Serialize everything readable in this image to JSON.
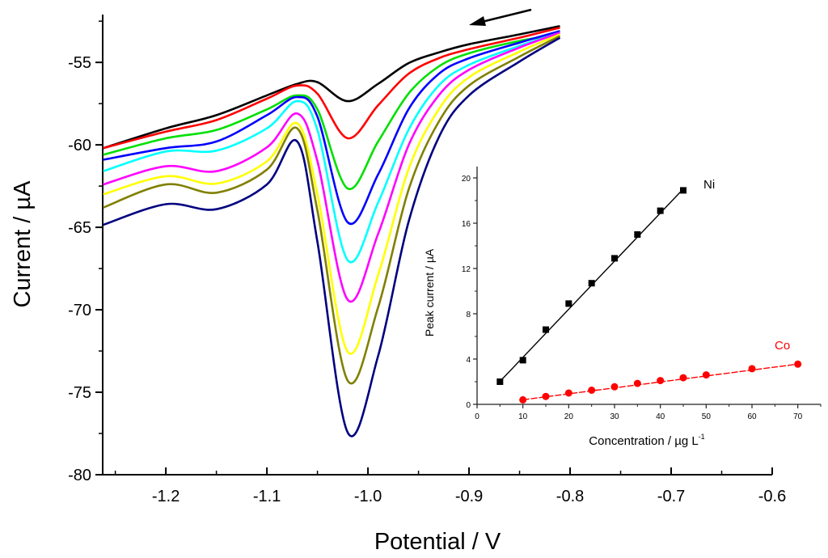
{
  "chart_data": [
    {
      "type": "line",
      "title": "",
      "xlabel": "Potential / V",
      "ylabel": "Current / µA",
      "xlim": [
        -1.2625,
        -0.6
      ],
      "ylim": [
        -80,
        -52.1
      ],
      "xticks": [
        -1.2,
        -1.1,
        -1.0,
        -0.9,
        -0.8,
        -0.7,
        -0.6
      ],
      "xtick_labels": [
        "-1.2",
        "-1.1",
        "-1.0",
        "-0.9",
        "-0.8",
        "-0.7",
        "-0.6"
      ],
      "yticks": [
        -55,
        -60,
        -65,
        -70,
        -75,
        -80
      ],
      "ytick_labels": [
        "-55",
        "-60",
        "-65",
        "-70",
        "-75",
        "-80"
      ],
      "grid": false,
      "annotation": "arrow indicating scan direction (right to left)",
      "x": [
        -1.262,
        -1.2,
        -1.15,
        -1.1,
        -1.07,
        -1.05,
        -1.02,
        -0.99,
        -0.96,
        -0.93,
        -0.9,
        -0.85,
        -0.81
      ],
      "series": [
        {
          "name": "black",
          "color": "#000000",
          "values": [
            -60.2,
            -59.0,
            -58.2,
            -57.0,
            -56.3,
            -56.2,
            -57.35,
            -56.3,
            -55.05,
            -54.4,
            -53.9,
            -53.3,
            -52.8
          ]
        },
        {
          "name": "red",
          "color": "#ff0000",
          "values": [
            -60.2,
            -59.2,
            -58.5,
            -57.2,
            -56.4,
            -56.9,
            -59.6,
            -57.6,
            -55.7,
            -54.75,
            -54.2,
            -53.5,
            -52.9
          ]
        },
        {
          "name": "green",
          "color": "#00e000",
          "values": [
            -60.6,
            -59.6,
            -59.1,
            -57.85,
            -57.0,
            -57.85,
            -62.65,
            -59.8,
            -56.9,
            -55.25,
            -54.45,
            -53.7,
            -53.3
          ]
        },
        {
          "name": "blue",
          "color": "#0000ff",
          "values": [
            -60.9,
            -60.2,
            -59.8,
            -58.2,
            -57.1,
            -58.3,
            -64.7,
            -61.8,
            -57.85,
            -55.7,
            -54.75,
            -53.8,
            -53.1
          ]
        },
        {
          "name": "cyan",
          "color": "#00ffff",
          "values": [
            -61.6,
            -60.4,
            -60.35,
            -59.0,
            -57.35,
            -59.1,
            -67.0,
            -63.5,
            -59.1,
            -56.4,
            -55.15,
            -54.0,
            -53.2
          ]
        },
        {
          "name": "magenta",
          "color": "#ff00ff",
          "values": [
            -62.4,
            -61.3,
            -61.6,
            -60.15,
            -58.1,
            -61.0,
            -69.4,
            -65.4,
            -60.05,
            -57.0,
            -55.45,
            -54.1,
            -53.2
          ]
        },
        {
          "name": "yellow",
          "color": "#ffff00",
          "values": [
            -63.0,
            -61.9,
            -62.35,
            -61.0,
            -58.7,
            -63.0,
            -72.55,
            -67.9,
            -61.5,
            -57.85,
            -55.9,
            -54.35,
            -53.3
          ]
        },
        {
          "name": "olive",
          "color": "#808000",
          "values": [
            -63.8,
            -62.4,
            -62.9,
            -61.5,
            -59.0,
            -64.0,
            -74.3,
            -69.85,
            -62.75,
            -58.6,
            -56.4,
            -54.65,
            -53.4
          ]
        },
        {
          "name": "navy",
          "color": "#000080",
          "values": [
            -64.85,
            -63.6,
            -63.9,
            -62.4,
            -59.8,
            -65.9,
            -77.45,
            -72.8,
            -64.7,
            -59.55,
            -57.0,
            -54.95,
            -53.5
          ]
        }
      ]
    },
    {
      "type": "scatter",
      "title": "",
      "xlabel": "Concentration / µg L",
      "xlabel_superscript": "-1",
      "ylabel": "Peak current / µA",
      "xlim": [
        0,
        75
      ],
      "ylim": [
        0,
        21
      ],
      "xticks": [
        0,
        10,
        20,
        30,
        40,
        50,
        60,
        70
      ],
      "xtick_labels": [
        "0",
        "10",
        "20",
        "30",
        "40",
        "50",
        "60",
        "70"
      ],
      "yticks": [
        0,
        4,
        8,
        12,
        16,
        20
      ],
      "ytick_labels": [
        "0",
        "4",
        "8",
        "12",
        "16",
        "20"
      ],
      "grid": false,
      "series": [
        {
          "name": "Ni",
          "color": "#000000",
          "marker": "square",
          "fit": {
            "slope": 0.425,
            "intercept": -0.1,
            "style": "solid"
          },
          "x": [
            5,
            10,
            15,
            20,
            25,
            30,
            35,
            40,
            45
          ],
          "values": [
            2.0,
            3.9,
            6.6,
            8.9,
            10.7,
            12.9,
            15.0,
            17.1,
            18.9
          ]
        },
        {
          "name": "Co",
          "color": "#ff0000",
          "marker": "circle",
          "fit": {
            "slope": 0.0525,
            "intercept": -0.12,
            "style": "dashed"
          },
          "x": [
            10,
            15,
            20,
            25,
            30,
            35,
            40,
            45,
            50,
            60,
            70
          ],
          "values": [
            0.4,
            0.7,
            1.0,
            1.25,
            1.55,
            1.85,
            2.1,
            2.35,
            2.6,
            3.15,
            3.55
          ]
        }
      ]
    }
  ]
}
